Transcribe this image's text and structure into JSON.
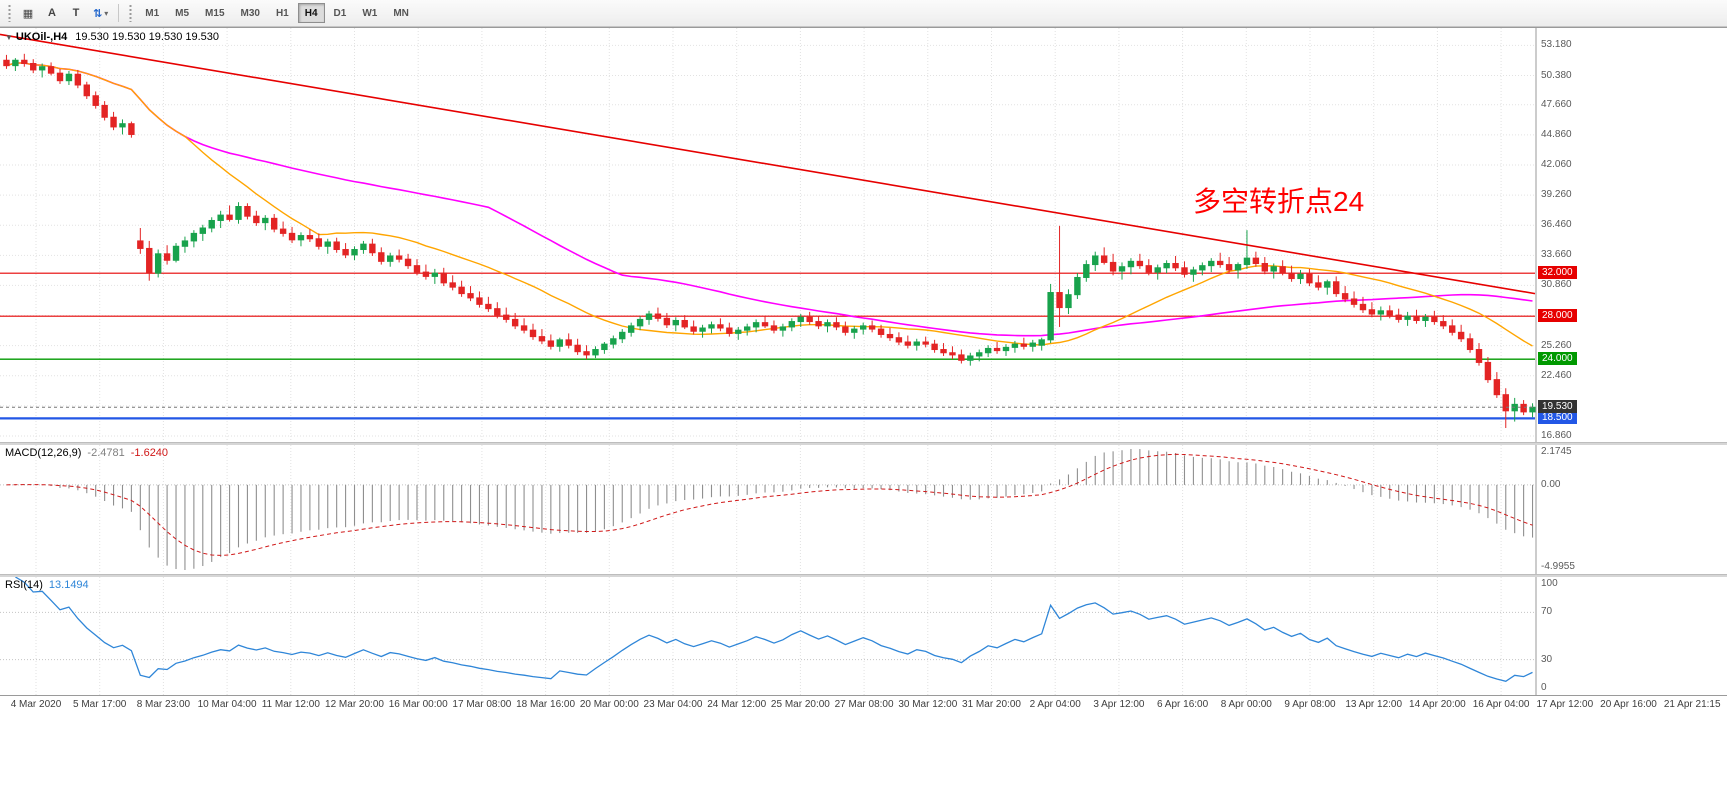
{
  "toolbar": {
    "tools": [
      {
        "id": "chart-window-icon",
        "glyph": "▦"
      },
      {
        "id": "text-label-tool",
        "glyph": "A"
      },
      {
        "id": "text-box-tool",
        "glyph": "T"
      },
      {
        "id": "cycle-symbols-tool",
        "glyph": "⇅"
      }
    ],
    "caret": "▾",
    "timeframes": [
      "M1",
      "M5",
      "M15",
      "M30",
      "H1",
      "H4",
      "D1",
      "W1",
      "MN"
    ],
    "active_timeframe": "H4"
  },
  "chart_header": {
    "marker": "▼",
    "symbol": "UKOil-,H4",
    "ohlc": "19.530 19.530 19.530 19.530"
  },
  "annotation": {
    "text": "多空转折点24",
    "color": "#ff0000"
  },
  "price_axis": {
    "labels": [
      "53.180",
      "50.380",
      "47.660",
      "44.860",
      "42.060",
      "39.260",
      "36.460",
      "33.660",
      "30.860",
      "28.060",
      "25.260",
      "22.460",
      "19.660",
      "16.860"
    ]
  },
  "indicators": {
    "macd": {
      "label": "MACD(12,26,9)",
      "main_value": "-2.4781",
      "signal_value": "-1.6240",
      "axis_top": "2.1745",
      "axis_zero": "0.00",
      "axis_bottom": "-4.9955",
      "hist_color": "#8f8f8f",
      "signal_color": "#d01818"
    },
    "rsi": {
      "label": "RSI(14)",
      "value": "13.1494",
      "axis": [
        "100",
        "70",
        "30",
        "0"
      ],
      "levels": [
        70,
        30
      ],
      "line_color": "#2f86d8"
    }
  },
  "time_axis": {
    "labels": [
      "4 Mar 2020",
      "5 Mar 17:00",
      "8 Mar 23:00",
      "10 Mar 04:00",
      "11 Mar 12:00",
      "12 Mar 20:00",
      "16 Mar 00:00",
      "17 Mar 08:00",
      "18 Mar 16:00",
      "20 Mar 00:00",
      "23 Mar 04:00",
      "24 Mar 12:00",
      "25 Mar 20:00",
      "27 Mar 08:00",
      "30 Mar 12:00",
      "31 Mar 20:00",
      "2 Apr 04:00",
      "3 Apr 12:00",
      "6 Apr 16:00",
      "8 Apr 00:00",
      "9 Apr 08:00",
      "13 Apr 12:00",
      "14 Apr 20:00",
      "16 Apr 04:00",
      "17 Apr 12:00",
      "20 Apr 16:00",
      "21 Apr 21:15"
    ]
  },
  "colors": {
    "up": "#18a24c",
    "down": "#e32424",
    "ma_fast": "#ffa500",
    "ma_slow": "#ff00ff",
    "trend": "#e60000",
    "grid": "#e2e2e2",
    "bid_line": "#777777",
    "bid_label_bg": "#333333"
  },
  "chart_data": {
    "type": "candlestick",
    "symbol": "UKOil-",
    "timeframe": "H4",
    "price_range": {
      "min": 16.3,
      "max": 54.8
    },
    "bid_price": 19.53,
    "bid_label": "19.530",
    "trendline": {
      "from_price": 54.2,
      "to_price": 30.1
    },
    "horizontal_lines": [
      {
        "price": 32.0,
        "label": "32.000",
        "color": "#e60000",
        "width": 1.2
      },
      {
        "price": 28.0,
        "label": "28.000",
        "color": "#e60000",
        "width": 1.2
      },
      {
        "price": 24.0,
        "label": "24.000",
        "color": "#009900",
        "width": 1.4
      },
      {
        "price": 18.5,
        "label": "18.500",
        "color": "#2257e6",
        "width": 2.2
      }
    ],
    "candles": [
      [
        51.8,
        52.3,
        51.0,
        51.3
      ],
      [
        51.3,
        52.0,
        50.8,
        51.8
      ],
      [
        51.8,
        52.4,
        51.2,
        51.5
      ],
      [
        51.5,
        51.9,
        50.6,
        50.9
      ],
      [
        50.9,
        51.5,
        50.2,
        51.2
      ],
      [
        51.2,
        51.6,
        50.4,
        50.6
      ],
      [
        50.6,
        51.0,
        49.6,
        49.9
      ],
      [
        49.9,
        50.8,
        49.5,
        50.5
      ],
      [
        50.5,
        50.9,
        49.2,
        49.5
      ],
      [
        49.5,
        49.8,
        48.2,
        48.5
      ],
      [
        48.5,
        48.9,
        47.3,
        47.6
      ],
      [
        47.6,
        48.0,
        46.2,
        46.5
      ],
      [
        46.5,
        47.0,
        45.3,
        45.6
      ],
      [
        45.6,
        46.3,
        44.9,
        45.9
      ],
      [
        45.9,
        46.1,
        44.6,
        44.9
      ],
      [
        35.0,
        36.2,
        33.8,
        34.3
      ],
      [
        34.3,
        35.0,
        31.3,
        32.0
      ],
      [
        32.0,
        34.2,
        31.6,
        33.8
      ],
      [
        33.8,
        34.6,
        32.8,
        33.2
      ],
      [
        33.2,
        34.8,
        33.0,
        34.5
      ],
      [
        34.5,
        35.4,
        33.9,
        35.0
      ],
      [
        35.0,
        36.0,
        34.4,
        35.7
      ],
      [
        35.7,
        36.5,
        35.0,
        36.2
      ],
      [
        36.2,
        37.2,
        35.8,
        36.9
      ],
      [
        36.9,
        37.8,
        36.2,
        37.4
      ],
      [
        37.4,
        38.3,
        36.8,
        37.0
      ],
      [
        37.0,
        38.6,
        36.6,
        38.2
      ],
      [
        38.2,
        38.5,
        37.0,
        37.3
      ],
      [
        37.3,
        37.8,
        36.4,
        36.7
      ],
      [
        36.7,
        37.4,
        36.0,
        37.1
      ],
      [
        37.1,
        37.5,
        35.8,
        36.1
      ],
      [
        36.1,
        36.8,
        35.4,
        35.7
      ],
      [
        35.7,
        36.3,
        34.8,
        35.1
      ],
      [
        35.1,
        35.8,
        34.5,
        35.5
      ],
      [
        35.5,
        36.1,
        34.9,
        35.2
      ],
      [
        35.2,
        35.7,
        34.2,
        34.5
      ],
      [
        34.5,
        35.2,
        33.8,
        34.9
      ],
      [
        34.9,
        35.3,
        33.9,
        34.2
      ],
      [
        34.2,
        34.8,
        33.4,
        33.7
      ],
      [
        33.7,
        34.5,
        33.2,
        34.2
      ],
      [
        34.2,
        35.0,
        33.8,
        34.7
      ],
      [
        34.7,
        35.2,
        33.6,
        33.9
      ],
      [
        33.9,
        34.4,
        32.8,
        33.1
      ],
      [
        33.1,
        33.9,
        32.6,
        33.6
      ],
      [
        33.6,
        34.2,
        33.0,
        33.3
      ],
      [
        33.3,
        33.8,
        32.4,
        32.7
      ],
      [
        32.7,
        33.3,
        31.8,
        32.1
      ],
      [
        32.1,
        32.8,
        31.4,
        31.7
      ],
      [
        31.7,
        32.4,
        31.0,
        32.0
      ],
      [
        32.0,
        32.5,
        30.8,
        31.1
      ],
      [
        31.1,
        31.8,
        30.4,
        30.7
      ],
      [
        30.7,
        31.3,
        29.8,
        30.1
      ],
      [
        30.1,
        30.8,
        29.4,
        29.7
      ],
      [
        29.7,
        30.3,
        28.8,
        29.1
      ],
      [
        29.1,
        29.8,
        28.4,
        28.7
      ],
      [
        28.7,
        29.3,
        27.8,
        28.1
      ],
      [
        28.1,
        28.8,
        27.4,
        27.7
      ],
      [
        27.7,
        28.3,
        26.8,
        27.1
      ],
      [
        27.1,
        27.8,
        26.4,
        26.7
      ],
      [
        26.7,
        27.3,
        25.8,
        26.1
      ],
      [
        26.1,
        26.8,
        25.4,
        25.7
      ],
      [
        25.7,
        26.3,
        24.9,
        25.2
      ],
      [
        25.2,
        26.0,
        24.7,
        25.8
      ],
      [
        25.8,
        26.4,
        25.0,
        25.3
      ],
      [
        25.3,
        25.9,
        24.4,
        24.7
      ],
      [
        24.7,
        25.3,
        24.0,
        24.4
      ],
      [
        24.4,
        25.2,
        24.1,
        24.9
      ],
      [
        24.9,
        25.6,
        24.5,
        25.4
      ],
      [
        25.4,
        26.2,
        25.0,
        25.9
      ],
      [
        25.9,
        26.8,
        25.5,
        26.5
      ],
      [
        26.5,
        27.4,
        26.1,
        27.1
      ],
      [
        27.1,
        28.0,
        26.7,
        27.7
      ],
      [
        27.7,
        28.5,
        27.2,
        28.2
      ],
      [
        28.2,
        28.8,
        27.5,
        27.8
      ],
      [
        27.8,
        28.3,
        26.9,
        27.2
      ],
      [
        27.2,
        27.9,
        26.6,
        27.6
      ],
      [
        27.6,
        28.1,
        26.8,
        27.0
      ],
      [
        27.0,
        27.6,
        26.3,
        26.6
      ],
      [
        26.6,
        27.2,
        26.0,
        26.9
      ],
      [
        26.9,
        27.5,
        26.4,
        27.2
      ],
      [
        27.2,
        27.8,
        26.6,
        26.9
      ],
      [
        26.9,
        27.4,
        26.1,
        26.4
      ],
      [
        26.4,
        27.0,
        25.8,
        26.7
      ],
      [
        26.7,
        27.3,
        26.2,
        27.0
      ],
      [
        27.0,
        27.7,
        26.5,
        27.4
      ],
      [
        27.4,
        28.0,
        26.9,
        27.1
      ],
      [
        27.1,
        27.6,
        26.4,
        26.7
      ],
      [
        26.7,
        27.3,
        26.1,
        27.0
      ],
      [
        27.0,
        27.8,
        26.6,
        27.5
      ],
      [
        27.5,
        28.2,
        27.0,
        27.9
      ],
      [
        27.9,
        28.4,
        27.2,
        27.5
      ],
      [
        27.5,
        28.0,
        26.8,
        27.1
      ],
      [
        27.1,
        27.7,
        26.5,
        27.4
      ],
      [
        27.4,
        27.9,
        26.7,
        27.0
      ],
      [
        27.0,
        27.5,
        26.2,
        26.5
      ],
      [
        26.5,
        27.1,
        25.9,
        26.8
      ],
      [
        26.8,
        27.4,
        26.3,
        27.1
      ],
      [
        27.1,
        27.6,
        26.5,
        26.8
      ],
      [
        26.8,
        27.2,
        26.0,
        26.3
      ],
      [
        26.3,
        26.9,
        25.7,
        26.0
      ],
      [
        26.0,
        26.5,
        25.3,
        25.6
      ],
      [
        25.6,
        26.2,
        25.0,
        25.3
      ],
      [
        25.3,
        25.9,
        24.8,
        25.6
      ],
      [
        25.6,
        26.1,
        25.1,
        25.4
      ],
      [
        25.4,
        25.8,
        24.6,
        24.9
      ],
      [
        24.9,
        25.5,
        24.3,
        24.6
      ],
      [
        24.6,
        25.2,
        24.0,
        24.4
      ],
      [
        24.4,
        24.9,
        23.6,
        23.9
      ],
      [
        23.9,
        24.6,
        23.4,
        24.3
      ],
      [
        24.3,
        24.9,
        23.8,
        24.6
      ],
      [
        24.6,
        25.3,
        24.2,
        25.0
      ],
      [
        25.0,
        25.6,
        24.5,
        24.8
      ],
      [
        24.8,
        25.4,
        24.3,
        25.1
      ],
      [
        25.1,
        25.7,
        24.6,
        25.4
      ],
      [
        25.4,
        26.0,
        24.9,
        25.2
      ],
      [
        25.2,
        25.8,
        24.7,
        25.5
      ],
      [
        25.3,
        26.0,
        24.8,
        25.8
      ],
      [
        25.8,
        31.0,
        25.5,
        30.2
      ],
      [
        30.2,
        36.4,
        27.0,
        28.8
      ],
      [
        28.8,
        30.5,
        28.2,
        30.0
      ],
      [
        30.0,
        32.0,
        29.6,
        31.6
      ],
      [
        31.6,
        33.2,
        31.2,
        32.8
      ],
      [
        32.8,
        34.0,
        32.2,
        33.6
      ],
      [
        33.6,
        34.4,
        32.8,
        33.0
      ],
      [
        33.0,
        33.8,
        31.8,
        32.2
      ],
      [
        32.2,
        33.0,
        31.4,
        32.6
      ],
      [
        32.6,
        33.4,
        31.9,
        33.1
      ],
      [
        33.1,
        33.8,
        32.4,
        32.7
      ],
      [
        32.7,
        33.3,
        31.8,
        32.1
      ],
      [
        32.1,
        32.8,
        31.4,
        32.5
      ],
      [
        32.5,
        33.2,
        32.0,
        32.9
      ],
      [
        32.9,
        33.6,
        32.2,
        32.5
      ],
      [
        32.5,
        33.1,
        31.6,
        31.9
      ],
      [
        31.9,
        32.6,
        31.2,
        32.3
      ],
      [
        32.3,
        33.0,
        31.8,
        32.7
      ],
      [
        32.7,
        33.4,
        32.1,
        33.1
      ],
      [
        33.1,
        33.9,
        32.5,
        32.8
      ],
      [
        32.8,
        33.5,
        32.0,
        32.3
      ],
      [
        32.3,
        33.0,
        31.5,
        32.8
      ],
      [
        32.8,
        36.0,
        32.4,
        33.4
      ],
      [
        33.4,
        34.0,
        32.6,
        32.9
      ],
      [
        32.9,
        33.5,
        31.9,
        32.2
      ],
      [
        32.2,
        32.9,
        31.5,
        32.6
      ],
      [
        32.6,
        33.2,
        31.8,
        32.0
      ],
      [
        32.0,
        32.7,
        31.2,
        31.5
      ],
      [
        31.5,
        32.3,
        31.0,
        31.9
      ],
      [
        31.9,
        32.4,
        30.8,
        31.1
      ],
      [
        31.1,
        31.8,
        30.4,
        30.7
      ],
      [
        30.7,
        31.4,
        30.0,
        31.2
      ],
      [
        31.2,
        31.7,
        29.8,
        30.1
      ],
      [
        30.1,
        30.8,
        29.3,
        29.6
      ],
      [
        29.6,
        30.3,
        28.8,
        29.1
      ],
      [
        29.1,
        29.8,
        28.3,
        28.6
      ],
      [
        28.6,
        29.3,
        27.9,
        28.2
      ],
      [
        28.2,
        28.9,
        27.6,
        28.5
      ],
      [
        28.5,
        29.0,
        27.8,
        28.1
      ],
      [
        28.1,
        28.7,
        27.4,
        27.7
      ],
      [
        27.7,
        28.4,
        27.1,
        28.0
      ],
      [
        28.0,
        28.6,
        27.3,
        27.6
      ],
      [
        27.6,
        28.2,
        27.0,
        27.9
      ],
      [
        27.9,
        28.5,
        27.2,
        27.5
      ],
      [
        27.5,
        28.1,
        26.8,
        27.1
      ],
      [
        27.1,
        27.7,
        26.2,
        26.5
      ],
      [
        26.5,
        27.2,
        25.6,
        25.9
      ],
      [
        25.9,
        26.4,
        24.6,
        24.9
      ],
      [
        24.9,
        25.5,
        23.4,
        23.7
      ],
      [
        23.7,
        24.2,
        21.8,
        22.1
      ],
      [
        22.1,
        22.8,
        20.4,
        20.7
      ],
      [
        20.7,
        21.3,
        17.6,
        19.2
      ],
      [
        19.2,
        20.4,
        18.2,
        19.8
      ],
      [
        19.8,
        20.2,
        18.8,
        19.1
      ],
      [
        19.1,
        19.9,
        18.6,
        19.53
      ]
    ]
  }
}
